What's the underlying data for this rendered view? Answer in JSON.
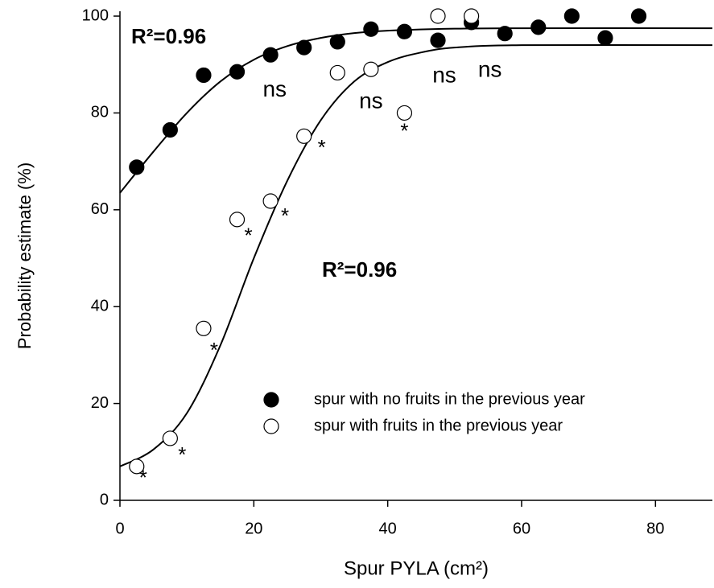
{
  "chart_data": {
    "type": "scatter",
    "xlabel": "Spur PYLA (cm²)",
    "ylabel": "Probability estimate (%)",
    "xlim": [
      0,
      88.5
    ],
    "xticks": [
      0,
      20,
      40,
      60,
      80
    ],
    "ylim": [
      0,
      101
    ],
    "yticks": [
      0,
      20,
      40,
      60,
      80,
      100
    ],
    "series": [
      {
        "name": "spur with no fruits in the previous year",
        "color": "#000000",
        "filled": true,
        "x": [
          2.5,
          7.5,
          12.5,
          17.5,
          22.5,
          27.5,
          32.5,
          37.5,
          42.5,
          47.5,
          52.5,
          57.5,
          62.5,
          67.5,
          72.5,
          77.5
        ],
        "values": [
          68.8,
          76.5,
          87.8,
          88.5,
          92,
          93.5,
          94.7,
          97.3,
          96.8,
          95,
          98.7,
          96.4,
          97.7,
          100,
          95.5,
          100
        ]
      },
      {
        "name": "spur with fruits in the previous year",
        "color": "#000000",
        "filled": false,
        "x": [
          2.5,
          7.5,
          12.5,
          17.5,
          22.5,
          27.5,
          32.5,
          37.5,
          42.5,
          47.5,
          52.5
        ],
        "values": [
          7,
          12.8,
          35.5,
          58,
          61.8,
          75.2,
          88.3,
          89,
          80,
          100,
          100
        ],
        "significance": [
          "*",
          "*",
          "*",
          "*",
          "*",
          "*",
          "ns",
          "ns",
          "*",
          "ns",
          "ns"
        ]
      }
    ],
    "fits": [
      {
        "x": [
          0,
          5,
          10,
          15,
          20,
          25,
          30,
          35,
          40,
          50,
          60,
          88.5
        ],
        "values": [
          63.5,
          72,
          80,
          86.5,
          91,
          93.8,
          95.5,
          96.5,
          97,
          97.4,
          97.5,
          97.5
        ]
      },
      {
        "x": [
          0,
          5,
          10,
          15,
          20,
          25,
          30,
          35,
          40,
          45,
          50,
          60,
          88.5
        ],
        "values": [
          7,
          10.5,
          18,
          32,
          50,
          66,
          78.5,
          86.5,
          90.5,
          92.5,
          93.5,
          94,
          94
        ]
      }
    ],
    "annotations": [
      "R²=0.96",
      "R²=0.96"
    ]
  }
}
